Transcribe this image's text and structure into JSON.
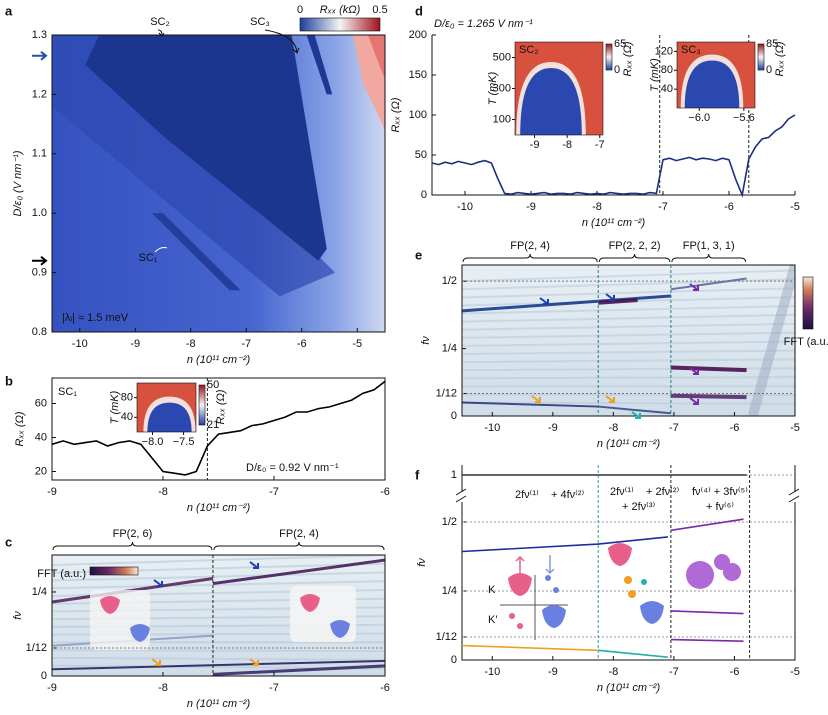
{
  "panel_labels": [
    "a",
    "b",
    "c",
    "d",
    "e",
    "f"
  ],
  "chart_data": [
    {
      "type": "heatmap",
      "xlabel": "n (10¹¹ cm⁻²)",
      "ylabel": "D/ε₀ (V nm⁻¹)",
      "xlim": [
        -10.5,
        -4.5
      ],
      "xticks": [
        -10,
        -9,
        -8,
        -7,
        -6,
        -5
      ],
      "ylim": [
        0.8,
        1.3
      ],
      "yticks": [
        0.8,
        0.9,
        {
          "value": 1.0,
          "label": "1.0"
        },
        1.1,
        1.2,
        1.3
      ],
      "colorbar": {
        "label": "Rₓₓ (kΩ)",
        "lim": [
          0,
          0.5
        ],
        "ticks": [
          0,
          0.5
        ]
      },
      "annotations": [
        "SC₂",
        "SC₃",
        "SC₁",
        "|λᵢ| ≈ 1.5 meV"
      ],
      "markers": [
        {
          "value": 1.265,
          "color": "#2b4fa0"
        },
        {
          "value": 0.92,
          "color": "#000000"
        }
      ]
    },
    {
      "type": "line",
      "xlabel": "n (10¹¹ cm⁻²)",
      "ylabel": "Rₓₓ (Ω)",
      "label": "SC₁",
      "annotation": "D/ε₀ = 0.92 V nm⁻¹",
      "xlim": [
        -9,
        -6
      ],
      "xticks": [
        -9,
        -8,
        -7,
        -6
      ],
      "ylim": [
        15,
        75
      ],
      "yticks": [
        20,
        40,
        60
      ],
      "dashed_x": [
        -7.6
      ],
      "x": [
        -9,
        -8.9,
        -8.8,
        -8.7,
        -8.6,
        -8.5,
        -8.4,
        -8.3,
        -8.2,
        -8.1,
        -8,
        -7.9,
        -7.8,
        -7.7,
        -7.6,
        -7.5,
        -7.4,
        -7.3,
        -7.2,
        -7.1,
        -7,
        -6.9,
        -6.8,
        -6.7,
        -6.6,
        -6.5,
        -6.4,
        -6.3,
        -6.2,
        -6.1,
        -6
      ],
      "series": [
        {
          "color": "#000000",
          "values": [
            36,
            38,
            36,
            37,
            38,
            35,
            37,
            38,
            36,
            28,
            20,
            19,
            18,
            20,
            35,
            42,
            43,
            44,
            47,
            48,
            50,
            52,
            55,
            55,
            57,
            58,
            60,
            62,
            66,
            68,
            73
          ]
        }
      ],
      "insets": [
        {
          "ylabel": "T (mK)",
          "xlim": [
            -8.25,
            -7.3
          ],
          "ylim": [
            10,
            110
          ],
          "xticks": [
            {
              "value": -8,
              "label": "−8.0"
            },
            {
              "value": -7.5,
              "label": "−7.5"
            }
          ],
          "yticks": [
            40,
            80
          ],
          "colorbar": {
            "label": "Rₓₓ (Ω)",
            "ticks": [
              21,
              50
            ]
          }
        }
      ]
    },
    {
      "type": "heatmap",
      "xlabel": "n (10¹¹ cm⁻²)",
      "ylabel": "fν",
      "xlim": [
        -9,
        -6
      ],
      "xticks": [
        -9,
        -8,
        -7,
        -6
      ],
      "ylim": [
        0,
        0.36
      ],
      "yticks": [
        0,
        {
          "value": 0.0833,
          "label": "1/12"
        },
        {
          "value": 0.25,
          "label": "1/4"
        }
      ],
      "brackets": [
        {
          "label": "FP(2, 6)",
          "range": [
            -9,
            -7.55
          ]
        },
        {
          "label": "FP(2, 4)",
          "range": [
            -7.55,
            -6
          ]
        }
      ],
      "colorbar": {
        "label": "FFT (a.u.)"
      }
    },
    {
      "type": "line",
      "xlabel": "n (10¹¹ cm⁻²)",
      "ylabel": "Rₓₓ (Ω)",
      "annotation": "D/ε₀ = 1.265 V nm⁻¹",
      "xlim": [
        -10.5,
        -5
      ],
      "xticks": [
        -10,
        -9,
        -8,
        -7,
        -6,
        -5
      ],
      "ylim": [
        0,
        200
      ],
      "yticks": [
        0,
        50,
        100,
        150,
        200
      ],
      "dashed_x": [
        -7.05,
        -5.7
      ],
      "x": [
        -10.5,
        -10.4,
        -10.3,
        -10.2,
        -10.1,
        -10,
        -9.9,
        -9.8,
        -9.7,
        -9.6,
        -9.5,
        -9.4,
        -9.3,
        -9.2,
        -9.1,
        -9,
        -8.9,
        -8.8,
        -8.7,
        -8.6,
        -8.5,
        -8.4,
        -8.3,
        -8.2,
        -8.1,
        -8,
        -7.9,
        -7.8,
        -7.7,
        -7.6,
        -7.5,
        -7.4,
        -7.3,
        -7.2,
        -7.1,
        -7,
        -6.9,
        -6.8,
        -6.7,
        -6.6,
        -6.5,
        -6.4,
        -6.3,
        -6.2,
        -6.1,
        -6,
        -5.9,
        -5.8,
        -5.7,
        -5.6,
        -5.5,
        -5.4,
        -5.3,
        -5.2,
        -5.1,
        -5
      ],
      "series": [
        {
          "color": "#1a2f80",
          "values": [
            40,
            38,
            41,
            39,
            42,
            40,
            38,
            41,
            43,
            40,
            20,
            2,
            1,
            3,
            2,
            1,
            2,
            3,
            1,
            2,
            2,
            1,
            3,
            2,
            1,
            2,
            1,
            3,
            2,
            1,
            2,
            2,
            1,
            3,
            2,
            44,
            46,
            43,
            45,
            47,
            44,
            46,
            45,
            43,
            46,
            44,
            20,
            0,
            45,
            60,
            70,
            72,
            80,
            85,
            95,
            100
          ]
        }
      ],
      "insets": [
        {
          "label": "SC₂",
          "ylabel": "T (mK)",
          "xlim": [
            -9.6,
            -6.9
          ],
          "ylim": [
            0,
            600
          ],
          "xticks": [
            -9,
            -8,
            -7
          ],
          "yticks": [
            100,
            300,
            500
          ],
          "colorbar": {
            "label": "Rₓₓ (Ω)",
            "ticks": [
              0,
              65
            ]
          }
        },
        {
          "label": "SC₃",
          "ylabel": "T (mK)",
          "xlim": [
            -6.2,
            -5.5
          ],
          "ylim": [
            0,
            140
          ],
          "xticks": [
            {
              "value": -6,
              "label": "−6.0"
            },
            {
              "value": -5.6,
              "label": "−5.6"
            }
          ],
          "yticks": [
            40,
            80,
            120
          ],
          "colorbar": {
            "label": "Rₓₓ (Ω)",
            "ticks": [
              0,
              85
            ]
          }
        }
      ]
    },
    {
      "type": "heatmap",
      "xlabel": "n (10¹¹ cm⁻²)",
      "ylabel": "fν",
      "xlim": [
        -10.5,
        -5
      ],
      "xticks": [
        -10,
        -9,
        -8,
        -7,
        -6,
        -5
      ],
      "ylim": [
        0,
        0.56
      ],
      "yticks": [
        0,
        {
          "value": 0.0833,
          "label": "1/12"
        },
        {
          "value": 0.25,
          "label": "1/4"
        },
        {
          "value": 0.5,
          "label": "1/2"
        }
      ],
      "brackets": [
        {
          "label": "FP(2, 4)",
          "range": [
            -10.5,
            -8.25
          ]
        },
        {
          "label": "FP(2, 2, 2)",
          "range": [
            -8.25,
            -7.05
          ]
        },
        {
          "label": "FP(1, 3, 1)",
          "range": [
            -7.05,
            -5.8
          ]
        }
      ],
      "colorbar": {
        "label": "FFT (a.u.)"
      }
    },
    {
      "type": "line",
      "xlabel": "n (10¹¹ cm⁻²)",
      "ylabel": "fν",
      "xlim": [
        -10.5,
        -5
      ],
      "xticks": [
        -10,
        -9,
        -8,
        -7,
        -6,
        -5
      ],
      "ylim": [
        0,
        1
      ],
      "yticks": [
        0,
        {
          "value": 0.0833,
          "label": "1/12"
        },
        {
          "value": 0.25,
          "label": "1/4"
        },
        {
          "value": 0.5,
          "label": "1/2"
        },
        1
      ],
      "dashed_x": [
        -8.25,
        -7.05,
        -5.75
      ],
      "series": [
        {
          "color": "#333333",
          "x": [
            -10.5,
            -5.8
          ],
          "values": [
            1,
            1
          ]
        },
        {
          "color": "#1a2f9c",
          "x": [
            -10.5,
            -8.25,
            -7.1
          ],
          "values": [
            0.393,
            0.42,
            0.446
          ]
        },
        {
          "color": "#f0a020",
          "x": [
            -10.5,
            -8.25
          ],
          "values": [
            0.052,
            0.035
          ]
        },
        {
          "color": "#20b0b0",
          "x": [
            -8.25,
            -7.1
          ],
          "values": [
            0.035,
            0.01
          ]
        },
        {
          "color": "#7a2aa8",
          "x": [
            -7.05,
            -5.85
          ],
          "values": [
            0.47,
            0.51
          ]
        },
        {
          "color": "#7a2aa8",
          "x": [
            -7.05,
            -5.85
          ],
          "values": [
            0.178,
            0.168
          ]
        },
        {
          "color": "#7a2aa8",
          "x": [
            -7.05,
            -5.85
          ],
          "values": [
            0.074,
            0.068
          ]
        }
      ],
      "formulas": [
        [
          {
            "text": "2fν⁽¹⁾",
            "color": "#1a2f9c"
          },
          {
            "text": " + 4fν⁽²⁾",
            "color": "#f0a020"
          }
        ],
        [
          {
            "text": "2fν⁽¹⁾",
            "color": "#1a2f9c"
          },
          {
            "text": " + 2fν⁽²⁾",
            "color": "#f0a020"
          },
          {
            "text": "+ 2fν⁽³⁾",
            "color": "#20b0b0"
          }
        ],
        [
          {
            "text": "fν⁽⁴⁾ + 3fν⁽⁵⁾",
            "color": "#7a2aa8"
          },
          {
            "text": "+ fν⁽⁶⁾",
            "color": "#7a2aa8"
          }
        ]
      ],
      "valleys": [
        "K",
        "K′"
      ]
    }
  ]
}
